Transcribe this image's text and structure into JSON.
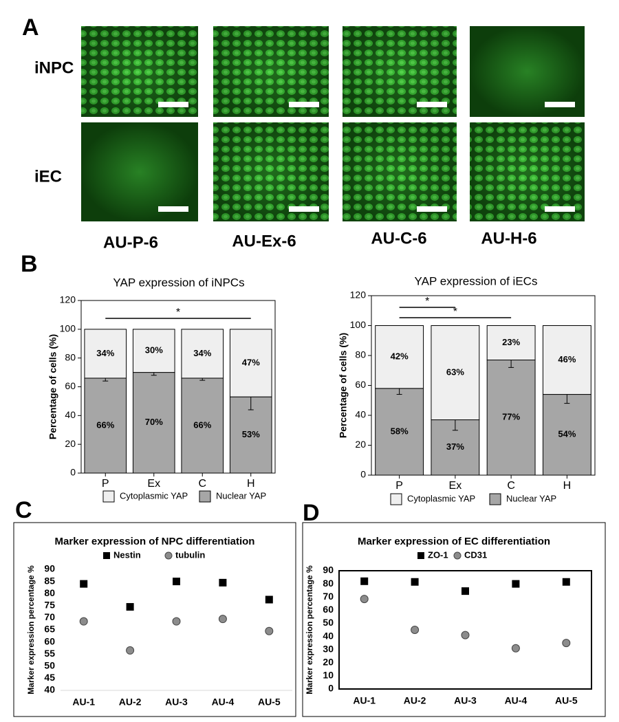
{
  "figure": {
    "panel_labels": [
      "A",
      "B",
      "C",
      "D"
    ],
    "row_labels": [
      "iNPC",
      "iEC"
    ],
    "column_labels": [
      "AU-P-6",
      "AU-Ex-6",
      "AU-C-6",
      "AU-H-6"
    ]
  },
  "chart_data": [
    {
      "type": "bar",
      "title": "YAP expression of iNPCs",
      "ylabel": "Percentage of cells (%)",
      "categories": [
        "P",
        "Ex",
        "C",
        "H"
      ],
      "series": [
        {
          "name": "Cytoplasmic YAP",
          "color": "#efefef",
          "values": [
            34,
            30,
            34,
            47
          ],
          "value_labels": [
            "34%",
            "30%",
            "34%",
            "47%"
          ]
        },
        {
          "name": "Nuclear YAP",
          "color": "#a6a6a6",
          "values": [
            66,
            70,
            66,
            53
          ],
          "value_labels": [
            "66%",
            "70%",
            "66%",
            "53%"
          ],
          "errors": [
            2,
            2,
            1.5,
            9
          ]
        }
      ],
      "annotations": [
        "*"
      ],
      "ylim": [
        0,
        120
      ],
      "yticks": [
        0,
        20,
        40,
        60,
        80,
        100,
        120
      ],
      "frame": true
    },
    {
      "type": "bar",
      "title": "YAP expression of iECs",
      "ylabel": "Percentage of cells (%)",
      "categories": [
        "P",
        "Ex",
        "C",
        "H"
      ],
      "series": [
        {
          "name": "Cytoplasmic YAP",
          "color": "#efefef",
          "values": [
            42,
            63,
            23,
            46
          ],
          "value_labels": [
            "42%",
            "63%",
            "23%",
            "46%"
          ]
        },
        {
          "name": "Nuclear YAP",
          "color": "#a6a6a6",
          "values": [
            58,
            37,
            77,
            54
          ],
          "value_labels": [
            "58%",
            "37%",
            "77%",
            "54%"
          ],
          "errors": [
            4,
            7,
            5,
            6
          ]
        }
      ],
      "annotations": [
        "*",
        "*"
      ],
      "ylim": [
        0,
        120
      ],
      "yticks": [
        0,
        20,
        40,
        60,
        80,
        100,
        120
      ],
      "frame": true
    },
    {
      "type": "scatter",
      "title": "Marker expression of NPC differentiation",
      "ylabel": "Marker expression  percentage %",
      "categories": [
        "AU-1",
        "AU-2",
        "AU-3",
        "AU-4",
        "AU-5"
      ],
      "series": [
        {
          "name": "Nestin",
          "color": "#000000",
          "marker": "square",
          "values": [
            84,
            74.5,
            85,
            84.5,
            77.5
          ]
        },
        {
          "name": "tubulin",
          "color": "#8c8c8c",
          "marker": "circle",
          "values": [
            68.5,
            56.5,
            68.5,
            69.5,
            64.5
          ]
        }
      ],
      "ylim": [
        40,
        90
      ],
      "yticks": [
        40,
        45,
        50,
        55,
        60,
        65,
        70,
        75,
        80,
        85,
        90
      ],
      "frame": false
    },
    {
      "type": "scatter",
      "title": "Marker expression of EC differentiation",
      "ylabel": "Marker expression percentage %",
      "categories": [
        "AU-1",
        "AU-2",
        "AU-3",
        "AU-4",
        "AU-5"
      ],
      "series": [
        {
          "name": "ZO-1",
          "color": "#000000",
          "marker": "square",
          "values": [
            82,
            81.5,
            74.5,
            80,
            81.5
          ]
        },
        {
          "name": "CD31",
          "color": "#8c8c8c",
          "marker": "circle",
          "values": [
            68.5,
            45,
            41,
            31,
            35
          ]
        }
      ],
      "ylim": [
        0,
        90
      ],
      "yticks": [
        0,
        10,
        20,
        30,
        40,
        50,
        60,
        70,
        80,
        90
      ],
      "frame": true
    }
  ]
}
